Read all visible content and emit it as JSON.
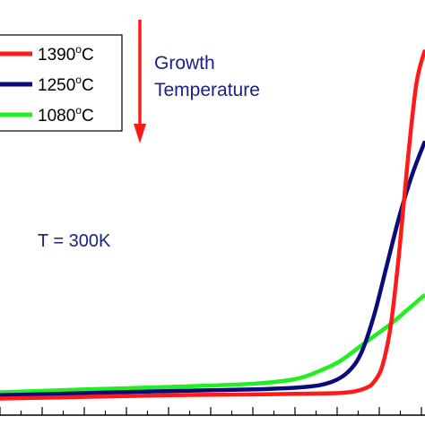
{
  "chart_data": {
    "type": "line",
    "title": "",
    "xlabel": "",
    "ylabel": "",
    "grid": false,
    "legend_placement": "top-left",
    "series": [
      {
        "name": "1390°C",
        "label_main": "1390",
        "label_sup": "o",
        "label_unit": "C",
        "color": "#ff1a1a",
        "points": [
          [
            0,
            0.04
          ],
          [
            20,
            0.044
          ],
          [
            40,
            0.048
          ],
          [
            60,
            0.05
          ],
          [
            75,
            0.052
          ],
          [
            82,
            0.055
          ],
          [
            86,
            0.065
          ],
          [
            88,
            0.08
          ],
          [
            90,
            0.12
          ],
          [
            92,
            0.22
          ],
          [
            94,
            0.4
          ],
          [
            96,
            0.62
          ],
          [
            98,
            0.8
          ],
          [
            100,
            0.88
          ]
        ]
      },
      {
        "name": "1250°C",
        "label_main": "1250",
        "label_sup": "o",
        "label_unit": "C",
        "color": "#0a0a7a",
        "points": [
          [
            0,
            0.048
          ],
          [
            20,
            0.053
          ],
          [
            40,
            0.058
          ],
          [
            60,
            0.062
          ],
          [
            72,
            0.068
          ],
          [
            78,
            0.08
          ],
          [
            82,
            0.105
          ],
          [
            85,
            0.15
          ],
          [
            88,
            0.24
          ],
          [
            91,
            0.36
          ],
          [
            94,
            0.48
          ],
          [
            97,
            0.58
          ],
          [
            100,
            0.66
          ]
        ]
      },
      {
        "name": "1080°C",
        "label_main": "1080",
        "label_sup": "o",
        "label_unit": "C",
        "color": "#22ee22",
        "points": [
          [
            0,
            0.055
          ],
          [
            20,
            0.062
          ],
          [
            40,
            0.068
          ],
          [
            60,
            0.076
          ],
          [
            70,
            0.088
          ],
          [
            76,
            0.11
          ],
          [
            80,
            0.13
          ],
          [
            84,
            0.16
          ],
          [
            88,
            0.19
          ],
          [
            92,
            0.22
          ],
          [
            96,
            0.255
          ],
          [
            100,
            0.29
          ]
        ]
      }
    ],
    "annotation_temperature": "T = 300K",
    "annotation_arrow_line1": "Growth",
    "annotation_arrow_line2": "Temperature",
    "arrow_color": "#ff1a1a",
    "xlim": [
      0,
      100
    ],
    "ylim": [
      0,
      1
    ]
  }
}
